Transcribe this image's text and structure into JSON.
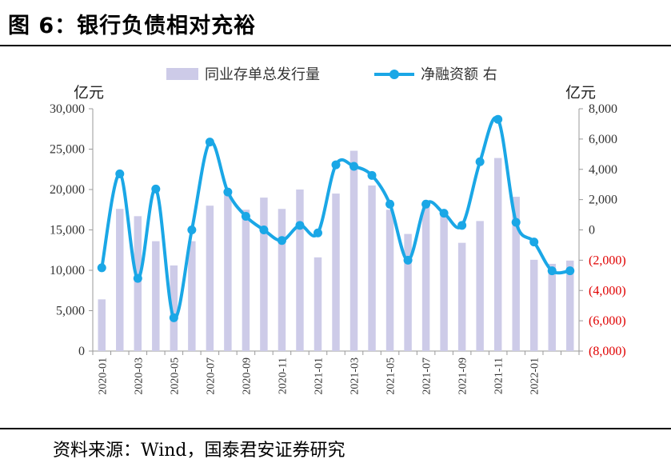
{
  "header": {
    "title": "图 6：银行负债相对充裕"
  },
  "footer": {
    "source": "资料来源：Wind，国泰君安证券研究"
  },
  "chart_data": {
    "type": "bar",
    "units": {
      "left": "亿元",
      "right": "亿元"
    },
    "left_axis": {
      "ylim": [
        0,
        30000
      ],
      "ticks": [
        0,
        5000,
        10000,
        15000,
        20000,
        25000,
        30000
      ],
      "tick_labels": [
        "0",
        "5,000",
        "10,000",
        "15,000",
        "20,000",
        "25,000",
        "30,000"
      ]
    },
    "right_axis": {
      "ylim": [
        -8000,
        8000
      ],
      "ticks": [
        -8000,
        -6000,
        -4000,
        -2000,
        0,
        2000,
        4000,
        6000,
        8000
      ],
      "tick_labels": [
        "(8,000)",
        "(6,000)",
        "(4,000)",
        "(2,000)",
        "0",
        "2,000",
        "4,000",
        "6,000",
        "8,000"
      ],
      "negative_color": "#e00000"
    },
    "x_tick_labels": [
      "2020-01",
      "2020-03",
      "2020-05",
      "2020-07",
      "2020-09",
      "2020-11",
      "2021-01",
      "2021-03",
      "2021-05",
      "2021-07",
      "2021-09",
      "2021-11",
      "2022-01"
    ],
    "categories": [
      "2020-01",
      "2020-02",
      "2020-03",
      "2020-04",
      "2020-05",
      "2020-06",
      "2020-07",
      "2020-08",
      "2020-09",
      "2020-10",
      "2020-11",
      "2020-12",
      "2021-01",
      "2021-02",
      "2021-03",
      "2021-04",
      "2021-05",
      "2021-06",
      "2021-07",
      "2021-08",
      "2021-09",
      "2021-10",
      "2021-11",
      "2021-12",
      "2022-01",
      "2022-02",
      "2022-03"
    ],
    "series": [
      {
        "name": "同业存单总发行量",
        "type": "bar",
        "axis": "left",
        "color": "#cdcbe8",
        "values": [
          6400,
          17600,
          16700,
          13600,
          10600,
          13600,
          18000,
          20000,
          17500,
          19000,
          17600,
          20000,
          11600,
          19500,
          24800,
          20500,
          17500,
          14500,
          18400,
          16800,
          13400,
          16100,
          23900,
          19100,
          11300,
          10800,
          11200
        ]
      },
      {
        "name": "净融资额 右",
        "type": "line",
        "axis": "right",
        "color": "#1aa7e6",
        "values": [
          -2500,
          3700,
          -3200,
          2700,
          -5800,
          0,
          5800,
          2500,
          900,
          0,
          -700,
          300,
          -200,
          4300,
          4200,
          3600,
          1700,
          -2000,
          1700,
          1100,
          300,
          4500,
          7300,
          500,
          -800,
          -2700,
          -2700
        ]
      }
    ],
    "legend_position": "top",
    "grid": false
  }
}
